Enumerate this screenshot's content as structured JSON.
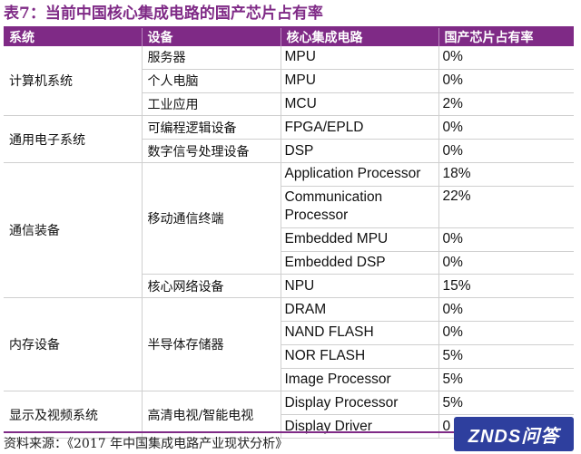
{
  "title": "表7：当前中国核心集成电路的国产芯片占有率",
  "headers": [
    "系统",
    "设备",
    "核心集成电路",
    "国产芯片占有率"
  ],
  "rows": [
    {
      "system": "计算机系统",
      "device": "服务器",
      "chip": "MPU",
      "rate": "0%"
    },
    {
      "system": "",
      "device": "个人电脑",
      "chip": "MPU",
      "rate": "0%"
    },
    {
      "system": "",
      "device": "工业应用",
      "chip": "MCU",
      "rate": "2%"
    },
    {
      "system": "通用电子系统",
      "device": "可编程逻辑设备",
      "chip": "FPGA/EPLD",
      "rate": "0%"
    },
    {
      "system": "",
      "device": "数字信号处理设备",
      "chip": "DSP",
      "rate": "0%"
    },
    {
      "system": "通信装备",
      "device": "移动通信终端",
      "chip": "Application Processor",
      "rate": "18%"
    },
    {
      "system": "",
      "device": "",
      "chip": "Communication Processor",
      "rate": "22%"
    },
    {
      "system": "",
      "device": "",
      "chip": "Embedded MPU",
      "rate": "0%"
    },
    {
      "system": "",
      "device": "",
      "chip": "Embedded DSP",
      "rate": "0%"
    },
    {
      "system": "",
      "device": "核心网络设备",
      "chip": "NPU",
      "rate": "15%"
    },
    {
      "system": "内存设备",
      "device": "半导体存储器",
      "chip": "DRAM",
      "rate": "0%"
    },
    {
      "system": "",
      "device": "",
      "chip": "NAND FLASH",
      "rate": "0%"
    },
    {
      "system": "",
      "device": "",
      "chip": "NOR FLASH",
      "rate": "5%"
    },
    {
      "system": "",
      "device": "",
      "chip": "Image Processor",
      "rate": "5%"
    },
    {
      "system": "显示及视频系统",
      "device": "高清电视/智能电视",
      "chip": "Display Processor",
      "rate": "5%"
    },
    {
      "system": "",
      "device": "",
      "chip": "Display Driver",
      "rate": "0"
    }
  ],
  "source": "资料来源：《2017 年中国集成电路产业现状分析》",
  "watermark": "ZNDS问答",
  "colors": {
    "accent": "#7f2a86",
    "watermark_bg": "#2e3f9e"
  }
}
